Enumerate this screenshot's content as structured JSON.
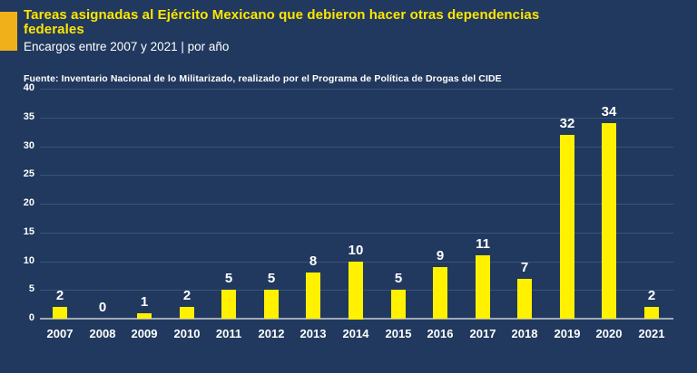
{
  "header": {
    "title": "Tareas asignadas al Ejército Mexicano que debieron hacer otras dependencias federales",
    "subtitle": "Encargos entre 2007 y 2021 | por año",
    "source": "Fuente: Inventario Nacional de lo Militarizado, realizado por el Programa de Política de Drogas del CIDE"
  },
  "colors": {
    "background": "#21395e",
    "bar": "#fff100",
    "title_text": "#ffe600",
    "accent_block": "#efb01a",
    "gridline": "#3c5378",
    "axis_line": "#9fa9b8",
    "text": "#ffffff"
  },
  "chart_data": {
    "type": "bar",
    "title": "Tareas asignadas al Ejército Mexicano que debieron hacer otras dependencias federales",
    "subtitle": "Encargos entre 2007 y 2021 | por año",
    "categories": [
      "2007",
      "2008",
      "2009",
      "2010",
      "2011",
      "2012",
      "2013",
      "2014",
      "2015",
      "2016",
      "2017",
      "2018",
      "2019",
      "2020",
      "2021"
    ],
    "values": [
      2,
      0,
      1,
      2,
      5,
      5,
      8,
      10,
      5,
      9,
      11,
      7,
      32,
      34,
      2
    ],
    "xlabel": "",
    "ylabel": "",
    "ylim": [
      0,
      40
    ],
    "yticks": [
      0,
      5,
      10,
      15,
      20,
      25,
      30,
      35,
      40
    ],
    "grid": true,
    "legend": false,
    "value_labels": true,
    "bar_color": "#fff100"
  }
}
